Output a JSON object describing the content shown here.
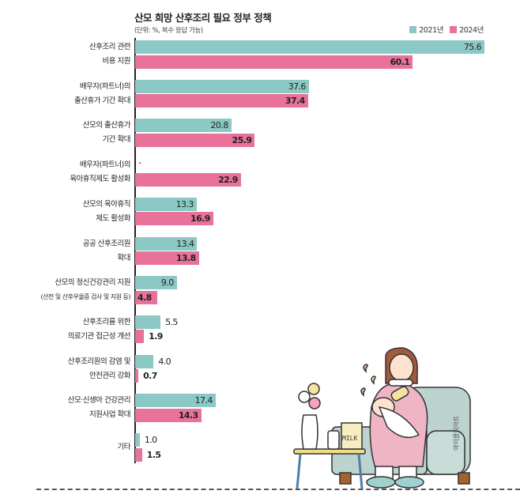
{
  "chart_data": {
    "type": "bar",
    "orientation": "horizontal",
    "title": "산모 희망 산후조리 필요 정부 정책",
    "subtitle": "(단위: %, 복수 응답 가능)",
    "xlim": [
      0,
      75.6
    ],
    "colors": {
      "2021년": "#8cc8c4",
      "2024년": "#e9729a"
    },
    "categories": [
      [
        "산후조리 관련",
        "비용 지원"
      ],
      [
        "배우자(파트너)의",
        "출산휴가 기간 확대"
      ],
      [
        "산모의 출산휴가",
        "기간 확대"
      ],
      [
        "배우자(파트너)의",
        "육아휴직제도 활성화"
      ],
      [
        "산모의 육아휴직",
        "제도 활성화"
      ],
      [
        "공공 산후조리원",
        "확대"
      ],
      [
        "산모의 정신건강관리 지원",
        "(산전 및 산후우울증 검사 및 지원 등)"
      ],
      [
        "산후조리를 위한",
        "의료기관 접근성 개선"
      ],
      [
        "산후조리원의 감염 및",
        "안전관리 강화"
      ],
      [
        "산모·신생아 건강관리",
        "지원사업 확대"
      ],
      [
        "기타"
      ]
    ],
    "series": [
      {
        "name": "2021년",
        "values": [
          75.6,
          37.6,
          20.8,
          null,
          13.3,
          13.4,
          9.0,
          5.5,
          4.0,
          17.4,
          1.0
        ],
        "missing_label": "-"
      },
      {
        "name": "2024년",
        "values": [
          60.1,
          37.4,
          25.9,
          22.9,
          16.9,
          13.8,
          4.8,
          1.9,
          0.7,
          14.3,
          1.5
        ]
      }
    ],
    "label_pos": [
      [
        "inside",
        "inside",
        "inside",
        "outside",
        "inside",
        "inside",
        "inside",
        "outside",
        "outside",
        "inside",
        "outside"
      ],
      [
        "inside",
        "inside",
        "inside",
        "inside",
        "inside",
        "inside",
        "start",
        "outside",
        "outside",
        "inside",
        "outside"
      ]
    ],
    "legend": "top-right"
  },
  "illustration": {
    "milk_label": "MILK",
    "watermark": "아이클릭아트"
  }
}
